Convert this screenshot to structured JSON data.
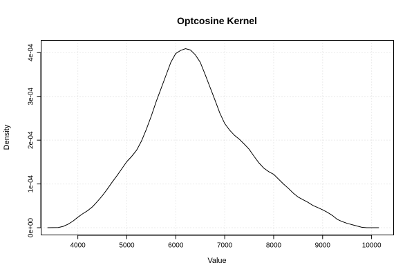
{
  "chart_data": {
    "type": "line",
    "title": "Optcosine Kernel",
    "xlabel": "Value",
    "ylabel": "Density",
    "xlim": [
      3250,
      10450
    ],
    "ylim": [
      -1.65e-05,
      0.000428
    ],
    "grid": true,
    "x_ticks": [
      4000,
      5000,
      6000,
      7000,
      8000,
      9000,
      10000
    ],
    "x_tick_labels": [
      "4000",
      "5000",
      "6000",
      "7000",
      "8000",
      "9000",
      "10000"
    ],
    "y_ticks": [
      0,
      0.0001,
      0.0002,
      0.0003,
      0.0004
    ],
    "y_tick_labels": [
      "0e+00",
      "1e-04",
      "2e-04",
      "3e-04",
      "4e-04"
    ],
    "series": [
      {
        "x": [
          3380,
          3600,
          3700,
          3800,
          3900,
          4000,
          4100,
          4200,
          4300,
          4400,
          4500,
          4600,
          4700,
          4800,
          4900,
          5000,
          5100,
          5200,
          5300,
          5400,
          5500,
          5600,
          5700,
          5800,
          5900,
          6000,
          6100,
          6200,
          6300,
          6400,
          6500,
          6600,
          6700,
          6800,
          6900,
          7000,
          7100,
          7200,
          7300,
          7400,
          7500,
          7600,
          7700,
          7800,
          7900,
          8000,
          8100,
          8200,
          8300,
          8400,
          8500,
          8600,
          8700,
          8800,
          8900,
          9000,
          9100,
          9200,
          9300,
          9400,
          9500,
          9600,
          9700,
          9800,
          9900,
          10000,
          10150
        ],
        "values": [
          0,
          5e-07,
          3e-06,
          8e-06,
          1.5e-05,
          2.4e-05,
          3.2e-05,
          3.9e-05,
          4.8e-05,
          6e-05,
          7.3e-05,
          8.8e-05,
          0.000104,
          0.000119,
          0.000135,
          0.000151,
          0.000163,
          0.000177,
          0.000198,
          0.000225,
          0.000255,
          0.000288,
          0.000318,
          0.000348,
          0.000378,
          0.000398,
          0.000405,
          0.000409,
          0.000406,
          0.000395,
          0.000378,
          0.00035,
          0.000321,
          0.000292,
          0.000262,
          0.000238,
          0.000223,
          0.000211,
          0.000202,
          0.000191,
          0.000179,
          0.000163,
          0.000148,
          0.000136,
          0.000128,
          0.000122,
          0.000111,
          0.0001,
          9e-05,
          7.9e-05,
          7e-05,
          6.4e-05,
          5.8e-05,
          5.1e-05,
          4.6e-05,
          4.1e-05,
          3.5e-05,
          2.8e-05,
          1.9e-05,
          1.4e-05,
          1e-05,
          7e-06,
          4e-06,
          1e-06,
          0,
          0,
          0
        ]
      }
    ]
  }
}
